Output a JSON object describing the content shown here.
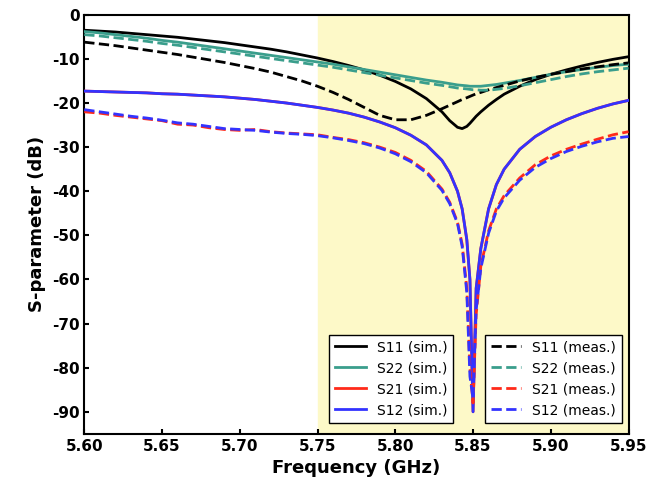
{
  "chart_data": {
    "type": "line",
    "x_label": "Frequency (GHz)",
    "y_label": "S-parameter (dB)",
    "x": [
      5.6,
      5.61,
      5.62,
      5.63,
      5.64,
      5.65,
      5.66,
      5.67,
      5.68,
      5.69,
      5.7,
      5.71,
      5.72,
      5.73,
      5.74,
      5.75,
      5.76,
      5.77,
      5.78,
      5.79,
      5.8,
      5.81,
      5.82,
      5.83,
      5.835,
      5.84,
      5.843,
      5.846,
      5.848,
      5.85,
      5.852,
      5.855,
      5.86,
      5.865,
      5.87,
      5.88,
      5.89,
      5.9,
      5.91,
      5.92,
      5.93,
      5.94,
      5.95
    ],
    "highlight": [
      5.75,
      5.95
    ],
    "xlim": [
      5.6,
      5.95
    ],
    "xticks": [
      {
        "value": 5.6,
        "label": "5.60"
      },
      {
        "value": 5.65,
        "label": "5.65"
      },
      {
        "value": 5.7,
        "label": "5.70"
      },
      {
        "value": 5.75,
        "label": "5.75"
      },
      {
        "value": 5.8,
        "label": "5.80"
      },
      {
        "value": 5.85,
        "label": "5.85"
      },
      {
        "value": 5.9,
        "label": "5.90"
      },
      {
        "value": 5.95,
        "label": "5.95"
      }
    ],
    "ylim": [
      -95,
      0
    ],
    "yticks": [
      -90,
      -80,
      -70,
      -60,
      -50,
      -40,
      -30,
      -20,
      -10,
      0
    ],
    "legend": "lower right",
    "series": [
      {
        "name": "S11 (sim.)",
        "color": "#000000",
        "line_style": "solid",
        "values": [
          -3.5,
          -3.7,
          -3.9,
          -4.2,
          -4.5,
          -4.8,
          -5.1,
          -5.5,
          -5.9,
          -6.3,
          -6.8,
          -7.3,
          -7.8,
          -8.4,
          -9.1,
          -9.8,
          -10.6,
          -11.5,
          -12.5,
          -13.7,
          -15.1,
          -16.8,
          -19.0,
          -22.0,
          -24.0,
          -25.5,
          -25.8,
          -25.3,
          -24.6,
          -23.8,
          -23.0,
          -22.0,
          -20.5,
          -19.2,
          -18.0,
          -16.2,
          -14.7,
          -13.5,
          -12.5,
          -11.6,
          -10.8,
          -10.1,
          -9.5
        ]
      },
      {
        "name": "S22 (sim.)",
        "color": "#3a9e8c",
        "line_style": "solid",
        "values": [
          -3.8,
          -4.1,
          -4.5,
          -4.9,
          -5.3,
          -5.8,
          -6.2,
          -6.7,
          -7.2,
          -7.7,
          -8.2,
          -8.7,
          -9.2,
          -9.7,
          -10.2,
          -10.7,
          -11.2,
          -11.8,
          -12.4,
          -13.0,
          -13.6,
          -14.2,
          -14.8,
          -15.3,
          -15.6,
          -15.9,
          -16.0,
          -16.1,
          -16.2,
          -16.2,
          -16.2,
          -16.2,
          -16.0,
          -15.8,
          -15.5,
          -14.9,
          -14.2,
          -13.5,
          -12.9,
          -12.4,
          -11.9,
          -11.5,
          -11.2
        ]
      },
      {
        "name": "S21 (sim.)",
        "color": "#ff2a1a",
        "line_style": "solid",
        "values": [
          -17.3,
          -17.4,
          -17.5,
          -17.6,
          -17.7,
          -17.9,
          -18.0,
          -18.2,
          -18.4,
          -18.6,
          -18.9,
          -19.2,
          -19.6,
          -20.0,
          -20.5,
          -21.0,
          -21.6,
          -22.3,
          -23.2,
          -24.3,
          -25.6,
          -27.3,
          -29.5,
          -33.0,
          -35.8,
          -40.0,
          -44.0,
          -51.0,
          -60.0,
          -90.0,
          -62.0,
          -53.0,
          -44.0,
          -38.5,
          -35.0,
          -30.5,
          -27.6,
          -25.5,
          -23.8,
          -22.4,
          -21.2,
          -20.2,
          -19.4
        ]
      },
      {
        "name": "S12 (sim.)",
        "color": "#3333ff",
        "line_style": "solid",
        "values": [
          -17.3,
          -17.4,
          -17.5,
          -17.6,
          -17.7,
          -17.9,
          -18.0,
          -18.2,
          -18.4,
          -18.6,
          -18.9,
          -19.2,
          -19.6,
          -20.0,
          -20.5,
          -21.0,
          -21.6,
          -22.3,
          -23.2,
          -24.3,
          -25.6,
          -27.3,
          -29.5,
          -33.0,
          -35.8,
          -40.0,
          -44.0,
          -51.0,
          -60.0,
          -90.0,
          -62.0,
          -53.0,
          -44.0,
          -38.5,
          -35.0,
          -30.5,
          -27.6,
          -25.5,
          -23.8,
          -22.4,
          -21.2,
          -20.2,
          -19.4
        ]
      },
      {
        "name": "S11 (meas.)",
        "color": "#000000",
        "line_style": "dashed",
        "values": [
          -6.2,
          -6.6,
          -7.0,
          -7.5,
          -8.0,
          -8.5,
          -9.0,
          -9.6,
          -10.2,
          -10.8,
          -11.5,
          -12.2,
          -13.0,
          -14.0,
          -15.0,
          -16.2,
          -17.6,
          -19.2,
          -21.0,
          -22.8,
          -23.8,
          -23.8,
          -22.8,
          -21.3,
          -20.5,
          -19.7,
          -19.2,
          -18.8,
          -18.5,
          -18.2,
          -17.9,
          -17.6,
          -17.0,
          -16.5,
          -16.0,
          -15.0,
          -14.2,
          -13.5,
          -12.9,
          -12.3,
          -11.8,
          -11.3,
          -10.9
        ]
      },
      {
        "name": "S22 (meas.)",
        "color": "#3a9e8c",
        "line_style": "dashed",
        "values": [
          -4.5,
          -4.8,
          -5.2,
          -5.6,
          -6.0,
          -6.5,
          -6.9,
          -7.4,
          -7.9,
          -8.4,
          -8.9,
          -9.4,
          -9.9,
          -10.4,
          -10.9,
          -11.4,
          -11.9,
          -12.5,
          -13.1,
          -13.7,
          -14.3,
          -14.9,
          -15.5,
          -16.0,
          -16.3,
          -16.6,
          -16.7,
          -16.8,
          -16.9,
          -17.0,
          -17.0,
          -17.1,
          -17.1,
          -16.9,
          -16.7,
          -16.1,
          -15.4,
          -14.7,
          -14.0,
          -13.4,
          -12.9,
          -12.5,
          -12.1
        ]
      },
      {
        "name": "S21 (meas.)",
        "color": "#ff2a1a",
        "line_style": "dashed",
        "values": [
          -22.0,
          -22.3,
          -22.8,
          -23.2,
          -23.6,
          -24.0,
          -24.8,
          -25.0,
          -25.6,
          -26.0,
          -26.2,
          -26.0,
          -26.5,
          -26.8,
          -27.0,
          -27.2,
          -27.8,
          -28.3,
          -29.0,
          -30.0,
          -31.2,
          -33.0,
          -35.5,
          -39.5,
          -42.5,
          -47.0,
          -52.0,
          -62.0,
          -80.0,
          -88.0,
          -68.0,
          -57.0,
          -49.0,
          -44.0,
          -41.0,
          -37.0,
          -34.0,
          -32.0,
          -30.5,
          -29.3,
          -28.2,
          -27.2,
          -26.5
        ]
      },
      {
        "name": "S12 (meas.)",
        "color": "#3333ff",
        "line_style": "dashed",
        "values": [
          -21.5,
          -22.0,
          -22.5,
          -23.0,
          -23.4,
          -23.9,
          -24.5,
          -24.8,
          -25.3,
          -25.8,
          -26.0,
          -26.2,
          -26.6,
          -26.9,
          -27.1,
          -27.4,
          -27.9,
          -28.5,
          -29.2,
          -30.2,
          -31.5,
          -33.3,
          -35.8,
          -39.8,
          -42.8,
          -47.3,
          -52.5,
          -63.0,
          -82.0,
          -87.0,
          -67.0,
          -57.5,
          -49.5,
          -44.5,
          -41.5,
          -37.5,
          -34.6,
          -32.6,
          -31.0,
          -29.8,
          -28.8,
          -28.0,
          -27.6
        ]
      }
    ]
  }
}
